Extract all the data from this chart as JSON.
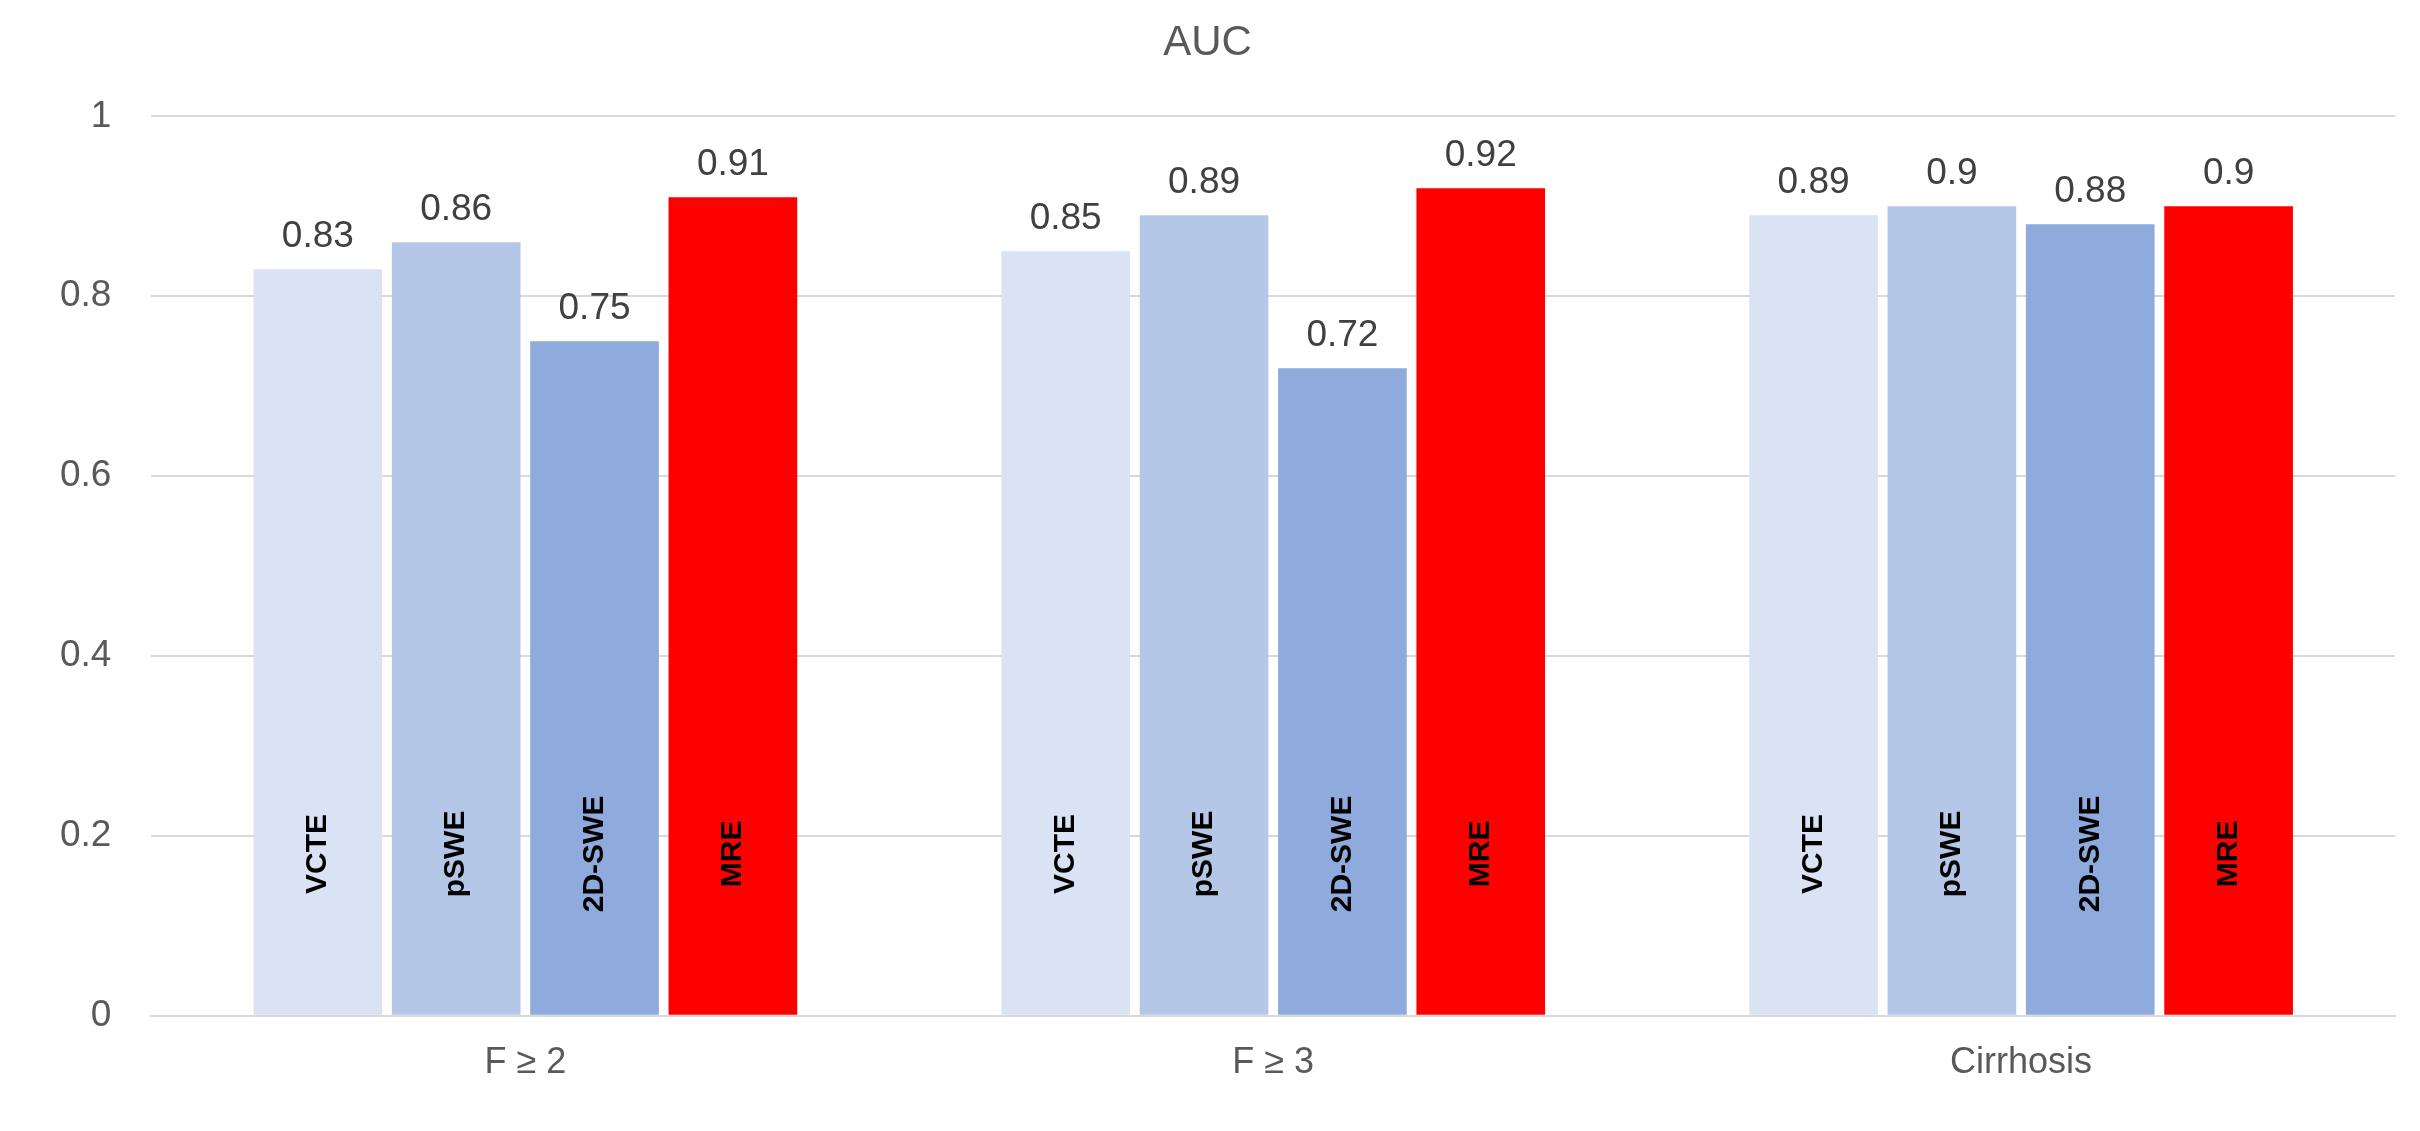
{
  "chart_data": {
    "type": "bar",
    "title": "AUC",
    "categories": [
      "F ≥ 2",
      "F ≥ 3",
      "Cirrhosis"
    ],
    "series": [
      {
        "name": "VCTE",
        "color": "#dae3f3",
        "values": [
          0.83,
          0.85,
          0.89
        ]
      },
      {
        "name": "pSWE",
        "color": "#b4c7e7",
        "values": [
          0.86,
          0.89,
          0.9
        ]
      },
      {
        "name": "2D-SWE",
        "color": "#8faadc",
        "values": [
          0.75,
          0.72,
          0.88
        ]
      },
      {
        "name": "MRE",
        "color": "#ff0000",
        "values": [
          0.91,
          0.92,
          0.9
        ]
      }
    ],
    "ylim": [
      0,
      1
    ],
    "yticks": [
      0,
      0.2,
      0.4,
      0.6,
      0.8,
      1
    ],
    "grid": "y",
    "legend": false,
    "data_labels": true
  }
}
